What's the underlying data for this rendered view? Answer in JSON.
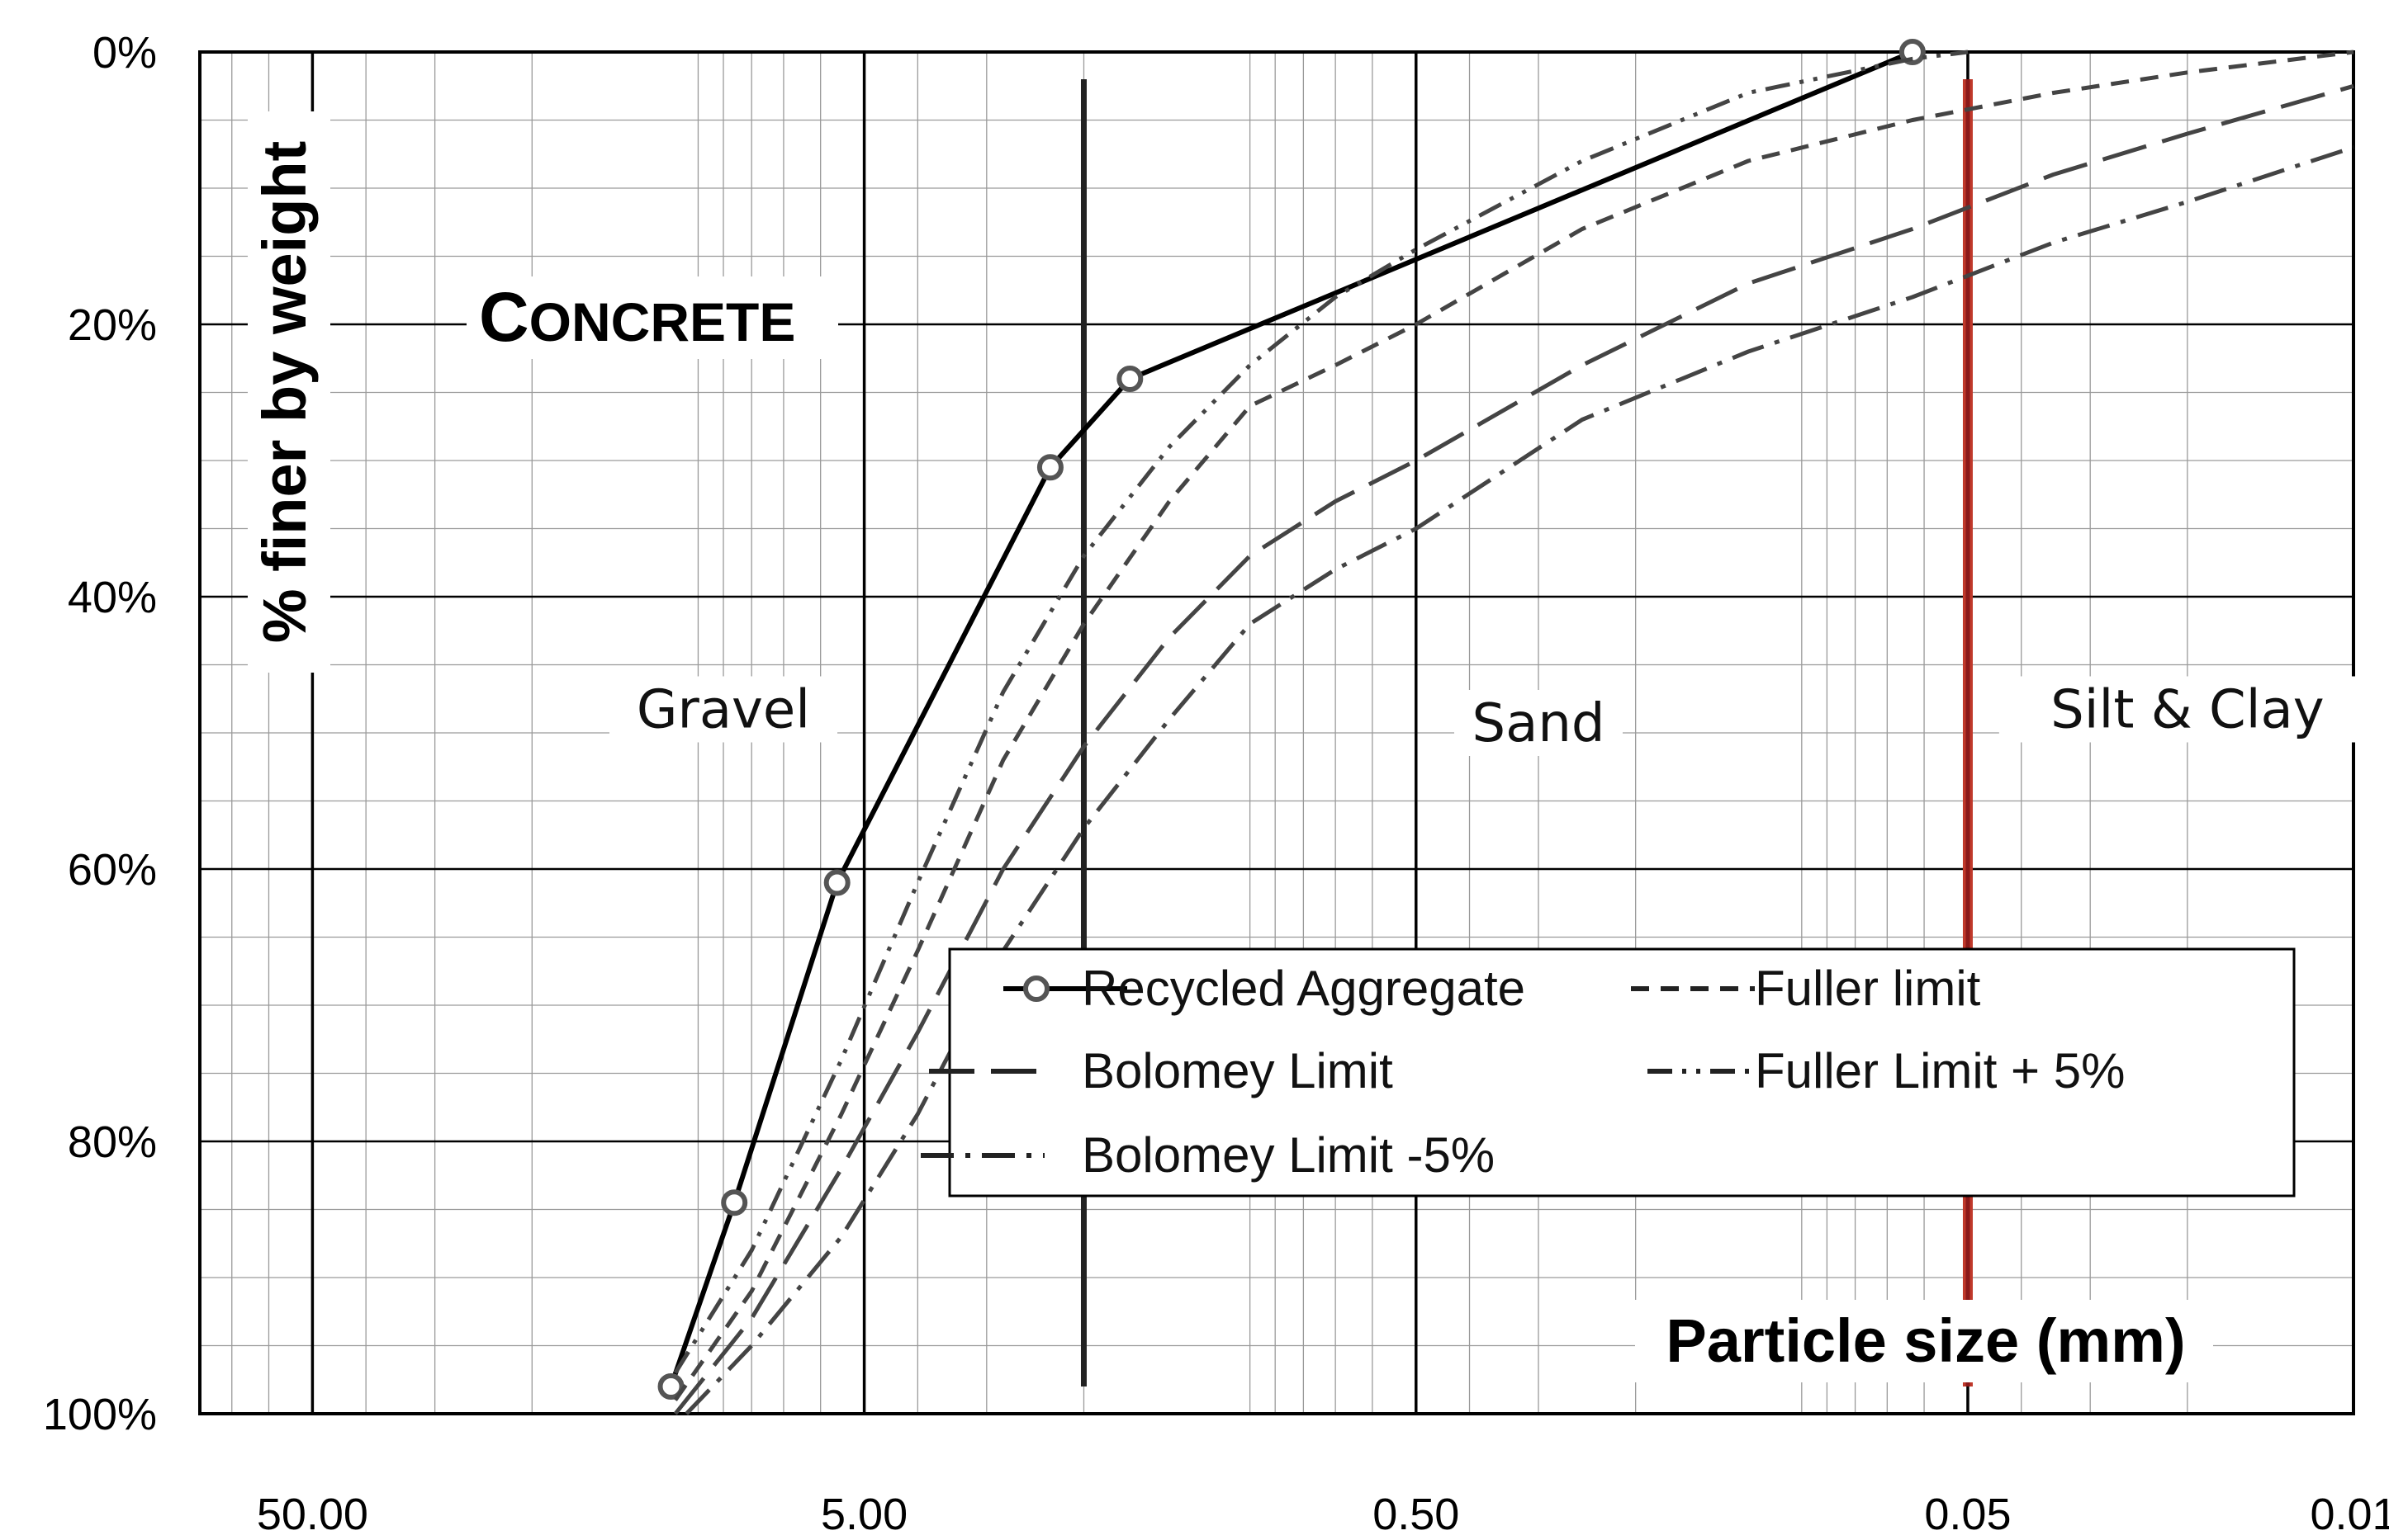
{
  "chart_data": {
    "type": "line",
    "title": "Concrete",
    "xlabel": "Particle size (mm)",
    "ylabel": "% finer by weight",
    "x_scale": "log",
    "x_reversed": true,
    "xlim": [
      80,
      0.01
    ],
    "ylim": [
      0,
      100
    ],
    "y_reversed": true,
    "x_tick_labels": [
      "50.00",
      "5.00",
      "0.50",
      "0.05",
      "0.01"
    ],
    "x_tick_values": [
      50,
      5,
      0.5,
      0.05,
      0.01
    ],
    "y_tick_labels": [
      "0%",
      "20%",
      "40%",
      "60%",
      "80%",
      "100%"
    ],
    "y_tick_values": [
      0,
      20,
      40,
      60,
      80,
      100
    ],
    "grid": true,
    "legend_position": "lower-right",
    "zones": [
      {
        "label": "Gravel",
        "x": 9,
        "y": 49
      },
      {
        "label": "Sand",
        "x": 0.3,
        "y": 50
      },
      {
        "label": "Silt & Clay",
        "x": 0.02,
        "y": 49
      }
    ],
    "boundaries": [
      {
        "x": 2.0,
        "y_range": [
          2,
          98
        ],
        "color": "#222222"
      },
      {
        "x": 0.05,
        "y_range": [
          2,
          98
        ],
        "color": "#8b1a1a"
      }
    ],
    "series": [
      {
        "name": "Recycled Aggregate",
        "style": "solid-markers",
        "color": "#000000",
        "x": [
          11.2,
          8.6,
          5.6,
          2.3,
          1.65,
          0.063
        ],
        "y": [
          98,
          84.5,
          61,
          30.5,
          24,
          0
        ]
      },
      {
        "name": "Fuller limit",
        "style": "dash",
        "color": "#444444",
        "x": [
          11.0,
          8.0,
          5.5,
          4.0,
          2.8,
          2.0,
          1.4,
          1.0,
          0.7,
          0.5,
          0.25,
          0.125,
          0.063,
          0.035,
          0.02,
          0.01
        ],
        "y": [
          99,
          91,
          78,
          66,
          52,
          42,
          33,
          26,
          23,
          20,
          13,
          8,
          5,
          3,
          1.5,
          0
        ]
      },
      {
        "name": "Bolomey Limit",
        "style": "long-dash",
        "color": "#444444",
        "x": [
          11.0,
          8.0,
          5.5,
          4.0,
          2.8,
          2.0,
          1.4,
          1.0,
          0.7,
          0.5,
          0.25,
          0.125,
          0.063,
          0.035,
          0.02,
          0.01
        ],
        "y": [
          100,
          93,
          82,
          72,
          60,
          51,
          43,
          37,
          33,
          30,
          23,
          17,
          13,
          9,
          6,
          2.5
        ]
      },
      {
        "name": "Fuller Limit + 5%",
        "style": "dash-dot-dot",
        "color": "#444444",
        "x": [
          11.0,
          8.0,
          5.5,
          4.0,
          2.8,
          2.0,
          1.4,
          1.0,
          0.7,
          0.5,
          0.25,
          0.125,
          0.063,
          0.05
        ],
        "y": [
          97,
          88,
          74,
          61,
          47,
          37,
          29,
          23,
          18,
          14.5,
          8,
          3,
          0.5,
          0
        ]
      },
      {
        "name": "Bolomey Limit -5%",
        "style": "dash-dot",
        "color": "#444444",
        "x": [
          10.5,
          8.0,
          5.5,
          4.0,
          2.8,
          2.0,
          1.4,
          1.0,
          0.7,
          0.5,
          0.25,
          0.125,
          0.063,
          0.035,
          0.02,
          0.01
        ],
        "y": [
          100,
          95,
          87,
          78,
          66,
          57,
          49,
          42,
          38,
          35,
          27,
          22,
          18,
          14,
          11,
          7
        ]
      }
    ]
  }
}
